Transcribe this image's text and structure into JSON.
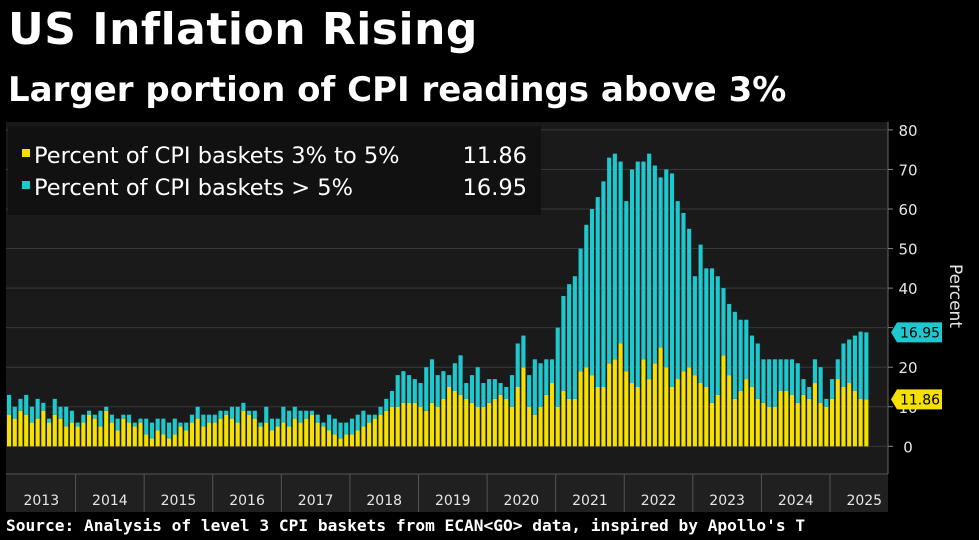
{
  "header": {
    "title": "US Inflation Rising",
    "subtitle": "Larger portion of CPI readings above 3%"
  },
  "footer": {
    "source": "Source: Analysis of level 3 CPI baskets from ECAN<GO> data, inspired by Apollo's T"
  },
  "colors": {
    "background": "#000000",
    "plot_background": "#1a1a1a",
    "gridline": "#3a3a3a",
    "yellow": "#f5e000",
    "cyan": "#1ec8cf"
  },
  "legend": {
    "items": [
      {
        "label": "Percent of CPI baskets 3% to 5%",
        "value": "11.86",
        "color": "#f5e000"
      },
      {
        "label": "Percent of CPI baskets > 5%",
        "value": "16.95",
        "color": "#1ec8cf"
      }
    ]
  },
  "chart_data": {
    "type": "bar",
    "stacked": true,
    "ylabel": "Percent",
    "ylim": [
      -7,
      82
    ],
    "yticks": [
      0,
      10,
      20,
      30,
      40,
      50,
      60,
      70,
      80
    ],
    "year_labels": [
      "2013",
      "2014",
      "2015",
      "2016",
      "2017",
      "2018",
      "2019",
      "2020",
      "2021",
      "2022",
      "2023",
      "2024",
      "2025"
    ],
    "last_value_tags": [
      {
        "series": "Percent of CPI baskets > 5%",
        "value": "16.95",
        "position": 28.8
      },
      {
        "series": "Percent of CPI baskets 3% to 5%",
        "value": "11.86",
        "position": 11.86
      }
    ],
    "series": [
      {
        "name": "Percent of CPI baskets 3% to 5%",
        "color": "#f5e000",
        "values": [
          8,
          7,
          9,
          8,
          6,
          7,
          9,
          6,
          8,
          7,
          5,
          6,
          5,
          6,
          8,
          7,
          5,
          9,
          6,
          4,
          7,
          6,
          5,
          6,
          3,
          2,
          4,
          3,
          2,
          3,
          5,
          4,
          6,
          7,
          5,
          6,
          6,
          7,
          8,
          7,
          6,
          9,
          8,
          7,
          5,
          6,
          4,
          5,
          6,
          5,
          7,
          6,
          7,
          8,
          6,
          5,
          4,
          3,
          2,
          3,
          3,
          4,
          5,
          6,
          7,
          8,
          9,
          10,
          10,
          11,
          11,
          11,
          10,
          9,
          11,
          10,
          12,
          15,
          14,
          13,
          12,
          11,
          10,
          10,
          11,
          12,
          13,
          12,
          10,
          15,
          20,
          10,
          8,
          10,
          13,
          16,
          10,
          14,
          12,
          12,
          19,
          20,
          18,
          15,
          15,
          21,
          22,
          26,
          19,
          16,
          15,
          22,
          17,
          21,
          25,
          20,
          15,
          17,
          19,
          20,
          18,
          16,
          15,
          11,
          13,
          23,
          18,
          12,
          14,
          17,
          15,
          12,
          11,
          10,
          10,
          14,
          14,
          13,
          11,
          13,
          12,
          16,
          11,
          10,
          12,
          17,
          15,
          16,
          14,
          12,
          11.86
        ]
      },
      {
        "name": "Percent of CPI baskets > 5%",
        "color": "#1ec8cf",
        "values": [
          5,
          3,
          3,
          5,
          4,
          5,
          2,
          1,
          4,
          3,
          5,
          3,
          1,
          2,
          1,
          1,
          4,
          1,
          2,
          3,
          1,
          2,
          1,
          1,
          4,
          4,
          3,
          4,
          4,
          4,
          1,
          2,
          2,
          3,
          3,
          2,
          2,
          2,
          1,
          3,
          4,
          2,
          1,
          2,
          1,
          4,
          3,
          2,
          4,
          4,
          3,
          3,
          2,
          1,
          2,
          1,
          4,
          4,
          4,
          3,
          4,
          4,
          4,
          2,
          1,
          2,
          3,
          4,
          8,
          8,
          7,
          6,
          6,
          11,
          11,
          8,
          7,
          3,
          7,
          10,
          4,
          7,
          10,
          6,
          6,
          5,
          3,
          3,
          8,
          11,
          8,
          8,
          14,
          11,
          9,
          6,
          20,
          24,
          29,
          31,
          31,
          36,
          42,
          48,
          52,
          52,
          52,
          46,
          43,
          54,
          57,
          50,
          57,
          50,
          43,
          50,
          54,
          45,
          40,
          35,
          25,
          35,
          30,
          34,
          30,
          17,
          18,
          22,
          18,
          15,
          13,
          14,
          11,
          12,
          12,
          8,
          8,
          9,
          10,
          4,
          3,
          6,
          9,
          2,
          5,
          5,
          11,
          11,
          14,
          17,
          16.95
        ]
      }
    ]
  }
}
